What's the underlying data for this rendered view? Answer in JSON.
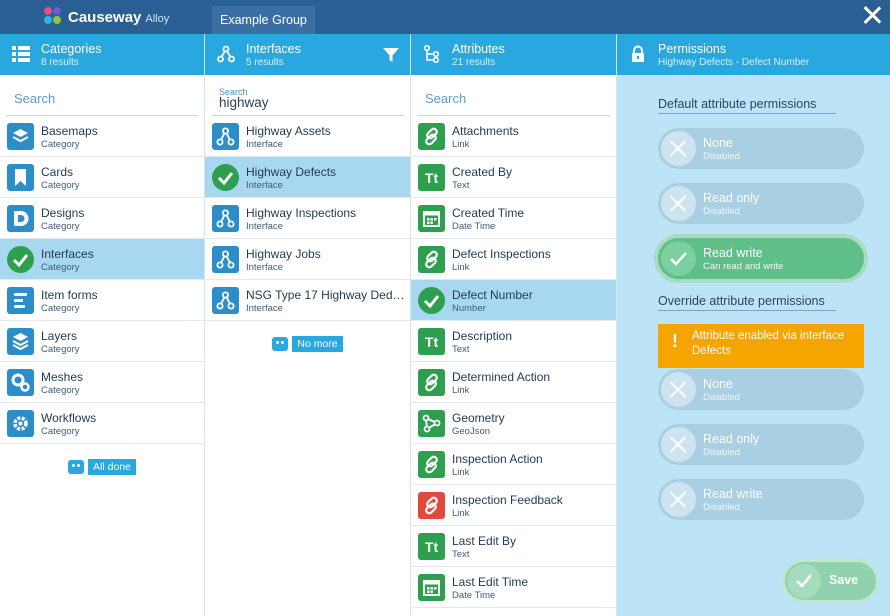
{
  "app": {
    "brand": "Causeway",
    "product": "Alloy",
    "group_tab": "Example Group"
  },
  "columns": {
    "categories": {
      "title": "Categories",
      "subtitle": "8 results",
      "search_placeholder": "Search",
      "items": [
        {
          "title": "Basemaps",
          "sub": "Category"
        },
        {
          "title": "Cards",
          "sub": "Category"
        },
        {
          "title": "Designs",
          "sub": "Category"
        },
        {
          "title": "Interfaces",
          "sub": "Category"
        },
        {
          "title": "Item forms",
          "sub": "Category"
        },
        {
          "title": "Layers",
          "sub": "Category"
        },
        {
          "title": "Meshes",
          "sub": "Category"
        },
        {
          "title": "Workflows",
          "sub": "Category"
        }
      ],
      "status": "All done"
    },
    "interfaces": {
      "title": "Interfaces",
      "subtitle": "5 results",
      "search_label": "Search",
      "search_value": "highway",
      "items": [
        {
          "title": "Highway Assets",
          "sub": "Interface"
        },
        {
          "title": "Highway Defects",
          "sub": "Interface"
        },
        {
          "title": "Highway Inspections",
          "sub": "Interface"
        },
        {
          "title": "Highway Jobs",
          "sub": "Interface"
        },
        {
          "title": "NSG Type 17 Highway Dedic...",
          "sub": "Interface"
        }
      ],
      "status": "No more"
    },
    "attributes": {
      "title": "Attributes",
      "subtitle": "21 results",
      "search_placeholder": "Search",
      "items": [
        {
          "title": "Attachments",
          "sub": "Link"
        },
        {
          "title": "Created By",
          "sub": "Text"
        },
        {
          "title": "Created Time",
          "sub": "Date Time"
        },
        {
          "title": "Defect Inspections",
          "sub": "Link"
        },
        {
          "title": "Defect Number",
          "sub": "Number"
        },
        {
          "title": "Description",
          "sub": "Text"
        },
        {
          "title": "Determined Action",
          "sub": "Link"
        },
        {
          "title": "Geometry",
          "sub": "GeoJson"
        },
        {
          "title": "Inspection Action",
          "sub": "Link"
        },
        {
          "title": "Inspection Feedback",
          "sub": "Link"
        },
        {
          "title": "Last Edit By",
          "sub": "Text"
        },
        {
          "title": "Last Edit Time",
          "sub": "Date Time"
        }
      ]
    },
    "permissions": {
      "title": "Permissions",
      "subtitle": "Highway Defects - Defect Number",
      "default_heading": "Default attribute permissions",
      "default_options": [
        {
          "title": "None",
          "sub": "Disabled"
        },
        {
          "title": "Read only",
          "sub": "Disabled"
        },
        {
          "title": "Read write",
          "sub": "Can read and write"
        }
      ],
      "override_heading": "Override attribute permissions",
      "alert_text": "Attribute enabled via interface Defects",
      "alert_icon": "!",
      "override_options": [
        {
          "title": "None",
          "sub": "Disabled"
        },
        {
          "title": "Read only",
          "sub": "Disabled"
        },
        {
          "title": "Read write",
          "sub": "Disabled"
        }
      ],
      "save_label": "Save"
    }
  },
  "colors": {
    "header": "#2a5f93",
    "accent": "#29a8e0",
    "selected": "#a7d8f0",
    "success": "#2e9e4f",
    "warning": "#f5a400"
  }
}
